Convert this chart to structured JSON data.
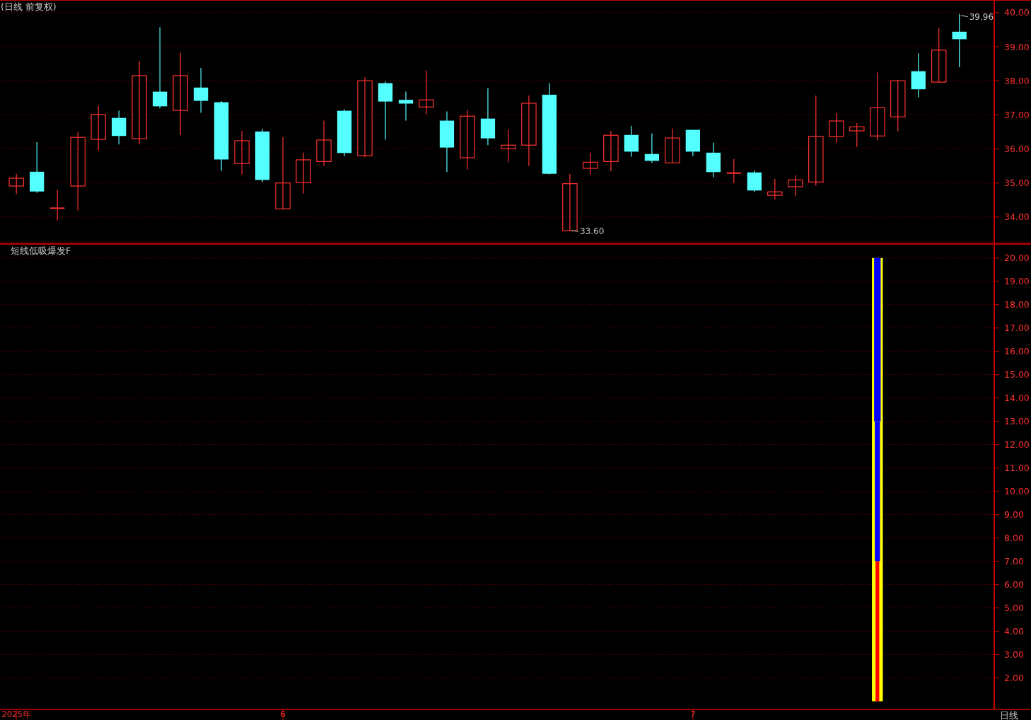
{
  "chart_data": [
    {
      "type": "candlestick",
      "title": "(日线 前复权)",
      "categories": [
        null,
        null,
        null,
        null,
        null,
        null,
        null,
        null,
        null,
        null,
        null,
        null,
        null,
        null,
        null,
        null,
        null,
        null,
        null,
        null,
        null,
        null,
        null,
        null,
        null,
        null,
        null,
        null,
        null,
        null,
        null,
        null,
        null,
        null,
        null,
        null,
        null,
        null,
        null,
        null,
        null,
        null,
        null,
        null,
        null,
        null,
        null
      ],
      "ohlc": [
        [
          34.91,
          35.27,
          34.67,
          35.14
        ],
        [
          35.33,
          36.2,
          34.71,
          34.75
        ],
        [
          34.26,
          34.79,
          33.9,
          34.26
        ],
        [
          34.91,
          36.49,
          34.19,
          36.34
        ],
        [
          36.28,
          37.26,
          35.96,
          37.01
        ],
        [
          36.91,
          37.12,
          36.13,
          36.38
        ],
        [
          36.3,
          38.57,
          36.13,
          38.15
        ],
        [
          37.68,
          39.57,
          37.19,
          37.25
        ],
        [
          37.13,
          38.82,
          36.4,
          38.15
        ],
        [
          37.8,
          38.38,
          37.06,
          37.41
        ],
        [
          37.37,
          37.4,
          35.36,
          35.69
        ],
        [
          35.57,
          36.53,
          35.25,
          36.24
        ],
        [
          36.51,
          36.58,
          35.03,
          35.09
        ],
        [
          34.24,
          36.35,
          34.24,
          35.0
        ],
        [
          35.01,
          35.89,
          34.69,
          35.68
        ],
        [
          35.63,
          36.83,
          35.5,
          36.26
        ],
        [
          37.12,
          37.16,
          35.79,
          35.88
        ],
        [
          35.8,
          38.11,
          35.75,
          38.0
        ],
        [
          37.93,
          37.98,
          36.27,
          37.39
        ],
        [
          37.44,
          37.68,
          36.83,
          37.33
        ],
        [
          37.23,
          38.3,
          37.02,
          37.44
        ],
        [
          36.83,
          37.1,
          35.32,
          36.04
        ],
        [
          35.74,
          37.14,
          35.4,
          36.96
        ],
        [
          36.89,
          37.78,
          36.11,
          36.31
        ],
        [
          36.01,
          36.56,
          35.61,
          36.11
        ],
        [
          36.11,
          37.57,
          35.5,
          37.34
        ],
        [
          37.59,
          37.93,
          35.25,
          35.27
        ],
        [
          33.6,
          35.27,
          33.6,
          34.98
        ],
        [
          35.43,
          35.89,
          35.25,
          35.61
        ],
        [
          35.63,
          36.53,
          35.34,
          36.4
        ],
        [
          36.41,
          36.68,
          35.77,
          35.92
        ],
        [
          35.85,
          36.45,
          35.59,
          35.65
        ],
        [
          35.59,
          36.6,
          35.59,
          36.32
        ],
        [
          36.56,
          36.56,
          35.79,
          35.92
        ],
        [
          35.89,
          36.18,
          35.17,
          35.32
        ],
        [
          35.29,
          35.7,
          35.0,
          35.29
        ],
        [
          35.31,
          35.37,
          34.73,
          34.78
        ],
        [
          34.64,
          35.12,
          34.51,
          34.74
        ],
        [
          34.89,
          35.23,
          34.61,
          35.09
        ],
        [
          35.03,
          37.57,
          34.92,
          36.37
        ],
        [
          36.36,
          37.05,
          36.19,
          36.82
        ],
        [
          36.53,
          36.76,
          36.06,
          36.65
        ],
        [
          36.38,
          38.24,
          36.25,
          37.21
        ],
        [
          36.94,
          38.02,
          36.52,
          38.0
        ],
        [
          38.28,
          38.81,
          37.52,
          37.75
        ],
        [
          37.96,
          39.56,
          37.96,
          38.9
        ],
        [
          39.44,
          39.96,
          38.4,
          39.22
        ]
      ],
      "colors": [
        "#ff3232",
        "#54ffff",
        "#ff3232",
        "#ff3232",
        "#ff3232",
        "#54ffff",
        "#ff3232",
        "#54ffff",
        "#ff3232",
        "#54ffff",
        "#54ffff",
        "#ff3232",
        "#54ffff",
        "#ff3232",
        "#ff3232",
        "#ff3232",
        "#54ffff",
        "#ff3232",
        "#54ffff",
        "#54ffff",
        "#ff3232",
        "#54ffff",
        "#ff3232",
        "#54ffff",
        "#ff3232",
        "#ff3232",
        "#54ffff",
        "#ff3232",
        "#ff3232",
        "#ff3232",
        "#54ffff",
        "#54ffff",
        "#ff3232",
        "#54ffff",
        "#54ffff",
        "#ff3232",
        "#54ffff",
        "#ff3232",
        "#ff3232",
        "#ff3232",
        "#ff3232",
        "#ff3232",
        "#ff3232",
        "#ff3232",
        "#54ffff",
        "#ff3232",
        "#54ffff"
      ],
      "ylim": [
        33.23,
        40.37
      ],
      "yticks": [
        {
          "value": 34,
          "label": "34.00"
        },
        {
          "value": 35,
          "label": "35.00"
        },
        {
          "value": 36,
          "label": "36.00"
        },
        {
          "value": 37,
          "label": "37.00"
        },
        {
          "value": 38,
          "label": "38.00"
        },
        {
          "value": 39,
          "label": "39.00"
        },
        {
          "value": 40,
          "label": "40.00"
        }
      ],
      "grid": "y",
      "tick_labels": "y",
      "annotations": [
        "39.96",
        "33.60"
      ]
    },
    {
      "type": "bar",
      "title": "短线低吸爆发F",
      "categories": [
        "2025年",
        null,
        null,
        null,
        null,
        null,
        null,
        null,
        null,
        null,
        null,
        null,
        null,
        "6",
        null,
        null,
        null,
        null,
        null,
        null,
        null,
        null,
        null,
        null,
        null,
        null,
        null,
        null,
        null,
        null,
        null,
        null,
        null,
        "7",
        null,
        null,
        null,
        null,
        null,
        null,
        null,
        null,
        null,
        null,
        null,
        null,
        null
      ],
      "series": [
        {
          "color": "#ffff00",
          "values": [
            null,
            null,
            null,
            null,
            null,
            null,
            null,
            null,
            null,
            null,
            null,
            null,
            null,
            null,
            null,
            null,
            null,
            null,
            null,
            null,
            null,
            null,
            null,
            null,
            null,
            null,
            null,
            null,
            null,
            null,
            null,
            null,
            null,
            null,
            null,
            null,
            null,
            null,
            null,
            null,
            null,
            null,
            19,
            null,
            null,
            null,
            null
          ],
          "base": [
            null,
            null,
            null,
            null,
            null,
            null,
            null,
            null,
            null,
            null,
            null,
            null,
            null,
            null,
            null,
            null,
            null,
            null,
            null,
            null,
            null,
            null,
            null,
            null,
            null,
            null,
            null,
            null,
            null,
            null,
            null,
            null,
            null,
            null,
            null,
            null,
            null,
            null,
            null,
            null,
            null,
            null,
            1,
            null,
            null,
            null,
            null
          ]
        },
        {
          "color": "#0000ff",
          "values": [
            null,
            null,
            null,
            null,
            null,
            null,
            null,
            null,
            null,
            null,
            null,
            null,
            null,
            null,
            null,
            null,
            null,
            null,
            null,
            null,
            null,
            null,
            null,
            null,
            null,
            null,
            null,
            null,
            null,
            null,
            null,
            null,
            null,
            null,
            null,
            null,
            null,
            null,
            null,
            null,
            null,
            null,
            7,
            null,
            null,
            null,
            null
          ],
          "base": [
            null,
            null,
            null,
            null,
            null,
            null,
            null,
            null,
            null,
            null,
            null,
            null,
            null,
            null,
            null,
            null,
            null,
            null,
            null,
            null,
            null,
            null,
            null,
            null,
            null,
            null,
            null,
            null,
            null,
            null,
            null,
            null,
            null,
            null,
            null,
            null,
            null,
            null,
            null,
            null,
            null,
            null,
            13,
            null,
            null,
            null,
            null
          ]
        },
        {
          "color": "#0000ff",
          "values": [
            null,
            null,
            null,
            null,
            null,
            null,
            null,
            null,
            null,
            null,
            null,
            null,
            null,
            null,
            null,
            null,
            null,
            null,
            null,
            null,
            null,
            null,
            null,
            null,
            null,
            null,
            null,
            null,
            null,
            null,
            null,
            null,
            null,
            null,
            null,
            null,
            null,
            null,
            null,
            null,
            null,
            null,
            6,
            null,
            null,
            null,
            null
          ],
          "base": [
            null,
            null,
            null,
            null,
            null,
            null,
            null,
            null,
            null,
            null,
            null,
            null,
            null,
            null,
            null,
            null,
            null,
            null,
            null,
            null,
            null,
            null,
            null,
            null,
            null,
            null,
            null,
            null,
            null,
            null,
            null,
            null,
            null,
            null,
            null,
            null,
            null,
            null,
            null,
            null,
            null,
            null,
            7,
            null,
            null,
            null,
            null
          ]
        },
        {
          "color": "#ff0000",
          "values": [
            null,
            null,
            null,
            null,
            null,
            null,
            null,
            null,
            null,
            null,
            null,
            null,
            null,
            null,
            null,
            null,
            null,
            null,
            null,
            null,
            null,
            null,
            null,
            null,
            null,
            null,
            null,
            null,
            null,
            null,
            null,
            null,
            null,
            null,
            null,
            null,
            null,
            null,
            null,
            null,
            null,
            null,
            6,
            null,
            null,
            null,
            null
          ],
          "base": [
            null,
            null,
            null,
            null,
            null,
            null,
            null,
            null,
            null,
            null,
            null,
            null,
            null,
            null,
            null,
            null,
            null,
            null,
            null,
            null,
            null,
            null,
            null,
            null,
            null,
            null,
            null,
            null,
            null,
            null,
            null,
            null,
            null,
            null,
            null,
            null,
            null,
            null,
            null,
            null,
            null,
            null,
            1,
            null,
            null,
            null,
            null
          ]
        }
      ],
      "ylim": [
        0.65,
        20.6
      ],
      "yticks": [
        {
          "value": 2,
          "label": "2.00"
        },
        {
          "value": 3,
          "label": "3.00"
        },
        {
          "value": 4,
          "label": "4.00"
        },
        {
          "value": 5,
          "label": "5.00"
        },
        {
          "value": 6,
          "label": "6.00"
        },
        {
          "value": 7,
          "label": "7.00"
        },
        {
          "value": 8,
          "label": "8.00"
        },
        {
          "value": 9,
          "label": "9.00"
        },
        {
          "value": 10,
          "label": "10.00"
        },
        {
          "value": 11,
          "label": "11.00"
        },
        {
          "value": 12,
          "label": "12.00"
        },
        {
          "value": 13,
          "label": "13.00"
        },
        {
          "value": 14,
          "label": "14.00"
        },
        {
          "value": 15,
          "label": "15.00"
        },
        {
          "value": 16,
          "label": "16.00"
        },
        {
          "value": 17,
          "label": "17.00"
        },
        {
          "value": 18,
          "label": "18.00"
        },
        {
          "value": 19,
          "label": "19.00"
        },
        {
          "value": 20,
          "label": "20.00"
        }
      ],
      "grid": "y",
      "annotations": [
        "日线"
      ]
    }
  ]
}
